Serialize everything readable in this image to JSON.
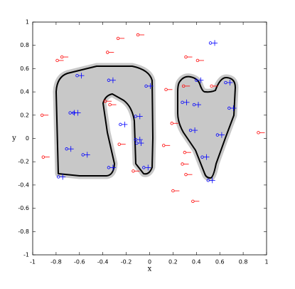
{
  "chart_data": {
    "type": "scatter",
    "xlabel": "x",
    "ylabel": "y",
    "xlim": [
      -1,
      1
    ],
    "ylim": [
      -1,
      1
    ],
    "xticks": [
      -1,
      -0.8,
      -0.6,
      -0.4,
      -0.2,
      0,
      0.2,
      0.4,
      0.6,
      0.8,
      1
    ],
    "yticks": [
      -1,
      -0.8,
      -0.6,
      -0.4,
      -0.2,
      0,
      0.2,
      0.4,
      0.6,
      0.8,
      1
    ],
    "series": [
      {
        "color": "#ff0000",
        "marker": "circle-dash",
        "x": [
          -0.1,
          -0.27,
          -0.36,
          -0.75,
          -0.79,
          0.31,
          0.41,
          -0.92,
          -0.38,
          -0.34,
          0.14,
          0.29,
          0.53,
          0.19,
          0.93,
          -0.26,
          0.12,
          -0.91,
          0.3,
          0.28,
          -0.14,
          0.31,
          0.2,
          0.37
        ],
        "values": [
          0.89,
          0.86,
          0.74,
          0.7,
          0.67,
          0.7,
          0.67,
          0.2,
          0.32,
          0.29,
          0.42,
          0.45,
          0.45,
          0.13,
          0.05,
          -0.05,
          -0.06,
          -0.16,
          -0.12,
          -0.22,
          -0.28,
          -0.31,
          -0.45,
          -0.54
        ]
      },
      {
        "color": "#0000ff",
        "marker": "circle-plus",
        "x": [
          0.52,
          -0.62,
          -0.35,
          -0.03,
          0.4,
          0.65,
          0.28,
          0.38,
          -0.68,
          -0.65,
          -0.12,
          -0.25,
          0.68,
          0.35,
          0.58,
          -0.12,
          -0.11,
          -0.71,
          -0.57,
          0.45,
          -0.35,
          -0.05,
          -0.78,
          0.5
        ],
        "values": [
          0.82,
          0.54,
          0.5,
          0.45,
          0.5,
          0.48,
          0.31,
          0.29,
          0.22,
          0.22,
          0.19,
          0.12,
          0.26,
          0.07,
          0.03,
          -0.01,
          -0.04,
          -0.09,
          -0.14,
          -0.16,
          -0.25,
          -0.25,
          -0.33,
          -0.36
        ]
      }
    ]
  }
}
